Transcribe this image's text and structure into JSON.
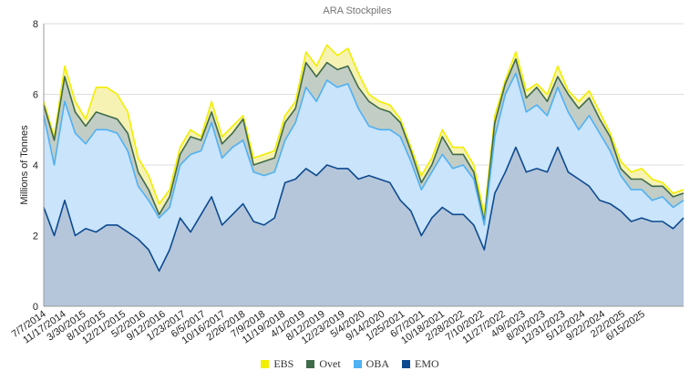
{
  "chart_data": {
    "type": "area",
    "title": "ARA Stockpiles",
    "xlabel": "",
    "ylabel": "Millions of Tonnes",
    "ylim": [
      0,
      8
    ],
    "y_ticks": [
      "0",
      "2",
      "4",
      "6",
      "8"
    ],
    "grid": true,
    "legend_position": "bottom",
    "x_unit": "weeks since 7/7/2014",
    "x_tick_labels": [
      "7/7/2014",
      "11/17/2014",
      "3/30/2015",
      "8/10/2015",
      "12/21/2015",
      "5/2/2016",
      "9/12/2016",
      "1/23/2017",
      "6/5/2017",
      "10/16/2017",
      "2/26/2018",
      "7/9/2018",
      "11/19/2018",
      "4/1/2019",
      "8/12/2019",
      "12/23/2019",
      "5/4/2020",
      "9/14/2020",
      "1/25/2021",
      "6/7/2021",
      "10/18/2021",
      "2/28/2022",
      "7/10/2022",
      "11/27/2022",
      "4/9/2023",
      "8/20/2023",
      "12/31/2023",
      "5/12/2024",
      "9/22/2024",
      "2/2/2025",
      "6/15/2025"
    ],
    "x_tick_weeks": [
      0,
      19,
      38,
      57,
      76,
      95,
      114,
      133,
      152,
      171,
      190,
      209,
      228,
      247,
      266,
      285,
      304,
      323,
      342,
      361,
      380,
      399,
      418,
      438,
      457,
      476,
      495,
      514,
      533,
      552,
      571
    ],
    "x": [
      0,
      10,
      20,
      30,
      40,
      50,
      60,
      70,
      80,
      90,
      100,
      110,
      120,
      130,
      140,
      150,
      160,
      170,
      180,
      190,
      200,
      210,
      220,
      230,
      240,
      250,
      260,
      270,
      280,
      290,
      300,
      310,
      320,
      330,
      340,
      350,
      360,
      370,
      380,
      390,
      400,
      410,
      420,
      430,
      440,
      450,
      460,
      470,
      480,
      490,
      500,
      510,
      520,
      530,
      540,
      550,
      560,
      570,
      580,
      590,
      600,
      610
    ],
    "series": [
      {
        "name": "EBS",
        "color": "#f2ee00",
        "fill": "#f6f2b4",
        "values": [
          5.8,
          4.8,
          6.8,
          5.8,
          5.3,
          6.2,
          6.2,
          6.0,
          5.5,
          4.2,
          3.7,
          2.9,
          3.3,
          4.5,
          5.0,
          4.8,
          5.8,
          4.8,
          5.1,
          5.4,
          4.2,
          4.3,
          4.4,
          5.4,
          5.8,
          7.2,
          6.8,
          7.4,
          7.1,
          7.3,
          6.6,
          6.0,
          5.8,
          5.7,
          5.3,
          4.5,
          3.7,
          4.2,
          5.0,
          4.5,
          4.5,
          4.0,
          2.6,
          5.4,
          6.4,
          7.2,
          6.1,
          6.3,
          6.0,
          6.8,
          6.1,
          5.8,
          6.1,
          5.5,
          4.9,
          4.1,
          3.8,
          3.9,
          3.6,
          3.5,
          3.2,
          3.3
        ]
      },
      {
        "name": "Ovet",
        "color": "#3f6b4b",
        "fill": "#c2cdc5",
        "values": [
          5.7,
          4.7,
          6.5,
          5.5,
          5.1,
          5.5,
          5.4,
          5.3,
          4.9,
          3.8,
          3.3,
          2.6,
          3.1,
          4.3,
          4.8,
          4.7,
          5.5,
          4.6,
          4.9,
          5.3,
          4.0,
          4.1,
          4.2,
          5.2,
          5.6,
          6.9,
          6.5,
          6.9,
          6.7,
          6.8,
          6.2,
          5.8,
          5.6,
          5.5,
          5.2,
          4.4,
          3.5,
          4.0,
          4.8,
          4.3,
          4.3,
          3.8,
          2.4,
          5.2,
          6.3,
          7.0,
          5.9,
          6.2,
          5.8,
          6.5,
          6.0,
          5.6,
          5.9,
          5.3,
          4.8,
          3.9,
          3.6,
          3.6,
          3.4,
          3.4,
          3.1,
          3.2
        ]
      },
      {
        "name": "OBA",
        "color": "#4fb0f2",
        "fill": "#c9e4fb",
        "values": [
          5.4,
          4.0,
          5.8,
          4.9,
          4.6,
          5.0,
          5.0,
          4.9,
          4.4,
          3.4,
          3.0,
          2.5,
          2.8,
          4.0,
          4.3,
          4.4,
          5.2,
          4.2,
          4.5,
          4.7,
          3.8,
          3.7,
          3.8,
          4.7,
          5.2,
          6.2,
          5.8,
          6.4,
          6.2,
          6.3,
          5.6,
          5.1,
          5.0,
          5.0,
          4.8,
          4.1,
          3.3,
          3.8,
          4.3,
          3.9,
          4.0,
          3.6,
          2.3,
          4.8,
          6.0,
          6.6,
          5.5,
          5.7,
          5.4,
          6.2,
          5.5,
          5.0,
          5.4,
          4.9,
          4.4,
          3.7,
          3.3,
          3.3,
          3.0,
          3.1,
          2.8,
          3.0
        ]
      },
      {
        "name": "EMO",
        "color": "#0d4a8e",
        "fill": "#b5c6db",
        "values": [
          2.8,
          2.0,
          3.0,
          2.0,
          2.2,
          2.1,
          2.3,
          2.3,
          2.1,
          1.9,
          1.6,
          1.0,
          1.6,
          2.5,
          2.1,
          2.6,
          3.1,
          2.3,
          2.6,
          2.9,
          2.4,
          2.3,
          2.5,
          3.5,
          3.6,
          3.9,
          3.7,
          4.0,
          3.9,
          3.9,
          3.6,
          3.7,
          3.6,
          3.5,
          3.0,
          2.7,
          2.0,
          2.5,
          2.8,
          2.6,
          2.6,
          2.3,
          1.6,
          3.2,
          3.8,
          4.5,
          3.8,
          3.9,
          3.8,
          4.5,
          3.8,
          3.6,
          3.4,
          3.0,
          2.9,
          2.7,
          2.4,
          2.5,
          2.4,
          2.4,
          2.2,
          2.5
        ]
      }
    ]
  }
}
